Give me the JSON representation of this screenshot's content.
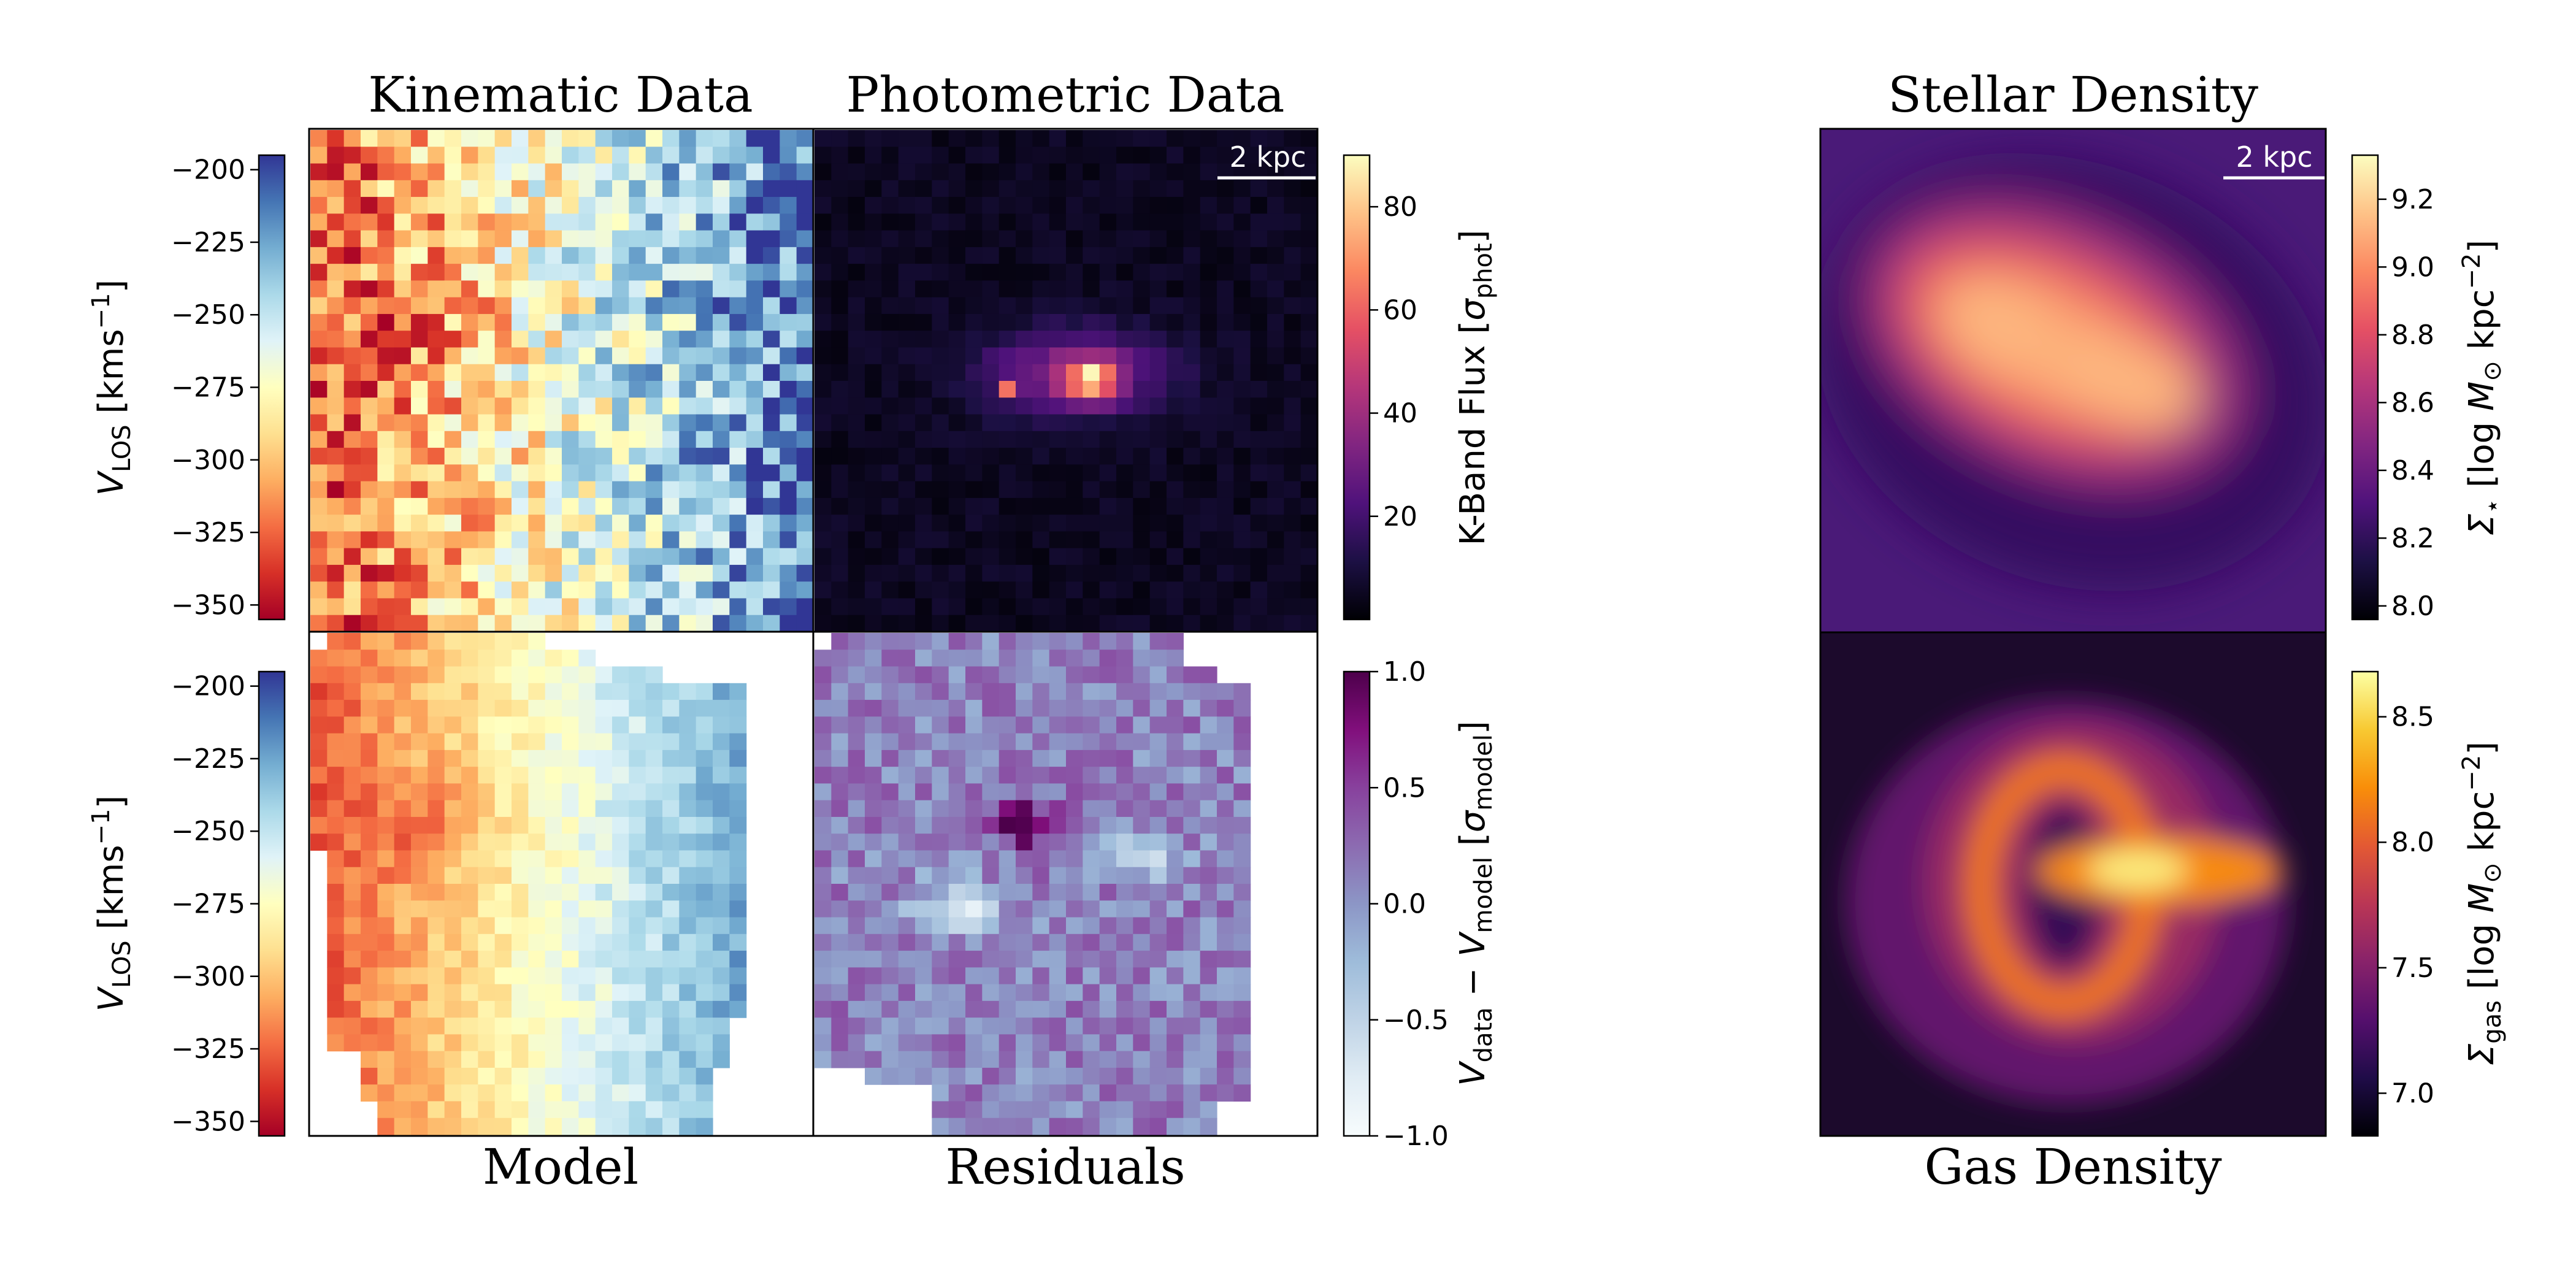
{
  "panel_titles": {
    "kinematic": "Kinematic Data",
    "photometric": "Photometric Data",
    "stellar": "Stellar Density",
    "model": "Model",
    "residuals": "Residuals",
    "gas": "Gas Density"
  },
  "scalebar_label": "2 kpc",
  "colorbars": {
    "vlos_top": {
      "ticks": [
        -200,
        -225,
        -250,
        -275,
        -300,
        -325,
        -350
      ],
      "tick_labels": [
        "−200",
        "−225",
        "−250",
        "−275",
        "−300",
        "−325",
        "−350"
      ],
      "label": "V_LOS [kms⁻¹]",
      "range": [
        -355,
        -195
      ],
      "cmap": "RdYlBu"
    },
    "vlos_bottom": {
      "ticks": [
        -200,
        -225,
        -250,
        -275,
        -300,
        -325,
        -350
      ],
      "tick_labels": [
        "−200",
        "−225",
        "−250",
        "−275",
        "−300",
        "−325",
        "−350"
      ],
      "label": "V_LOS [kms⁻¹]",
      "range": [
        -355,
        -195
      ],
      "cmap": "RdYlBu"
    },
    "kband": {
      "ticks": [
        80,
        60,
        40,
        20
      ],
      "tick_labels": [
        "80",
        "60",
        "40",
        "20"
      ],
      "label": "K-Band Flux [σ_phot]",
      "range": [
        0,
        90
      ],
      "cmap": "magma"
    },
    "resid": {
      "ticks": [
        1.0,
        0.5,
        0.0,
        -0.5,
        -1.0
      ],
      "tick_labels": [
        "1.0",
        "0.5",
        "0.0",
        "−0.5",
        "−1.0"
      ],
      "label": "V_data − V_model [σ_model]",
      "range": [
        -1,
        1
      ],
      "cmap": "BuPu"
    },
    "stellar": {
      "ticks": [
        9.2,
        9.0,
        8.8,
        8.6,
        8.4,
        8.2,
        8.0
      ],
      "tick_labels": [
        "9.2",
        "9.0",
        "8.8",
        "8.6",
        "8.4",
        "8.2",
        "8.0"
      ],
      "label": "Σ⋆ [log M⊙ kpc⁻²]",
      "range": [
        7.96,
        9.33
      ],
      "cmap": "magma"
    },
    "gas": {
      "ticks": [
        8.5,
        8.0,
        7.5,
        7.0
      ],
      "tick_labels": [
        "8.5",
        "8.0",
        "7.5",
        "7.0"
      ],
      "label": "Σgas [log M⊙ kpc⁻²]",
      "range": [
        6.83,
        8.68
      ],
      "cmap": "inferno"
    }
  },
  "chart_data": [
    {
      "type": "heatmap",
      "title": "Kinematic Data",
      "quantity": "V_LOS",
      "units": "kms⁻¹",
      "range": [
        -355,
        -195
      ],
      "cmap": "RdYlBu",
      "grid": [
        30,
        30
      ],
      "description_of_field": "velocity gradient from about −330 (left) to about −210 (right)"
    },
    {
      "type": "heatmap",
      "title": "Photometric Data",
      "quantity": "K-Band Flux",
      "units": "σ_phot",
      "range": [
        0,
        90
      ],
      "cmap": "magma",
      "grid": [
        30,
        30
      ],
      "peak": 85
    },
    {
      "type": "heatmap",
      "title": "Model",
      "quantity": "V_LOS",
      "units": "kms⁻¹",
      "range": [
        -355,
        -195
      ],
      "cmap": "RdYlBu",
      "grid": [
        30,
        30
      ]
    },
    {
      "type": "heatmap",
      "title": "Residuals",
      "quantity": "V_data − V_model",
      "units": "σ_model",
      "range": [
        -1,
        1
      ],
      "cmap": "BuPu",
      "grid": [
        30,
        30
      ]
    },
    {
      "type": "heatmap",
      "title": "Stellar Density",
      "quantity": "Σ⋆",
      "units": "log M⊙ kpc⁻²",
      "range": [
        7.96,
        9.33
      ],
      "cmap": "magma"
    },
    {
      "type": "heatmap",
      "title": "Gas Density",
      "quantity": "Σgas",
      "units": "log M⊙ kpc⁻²",
      "range": [
        6.83,
        8.68
      ],
      "cmap": "inferno"
    }
  ]
}
